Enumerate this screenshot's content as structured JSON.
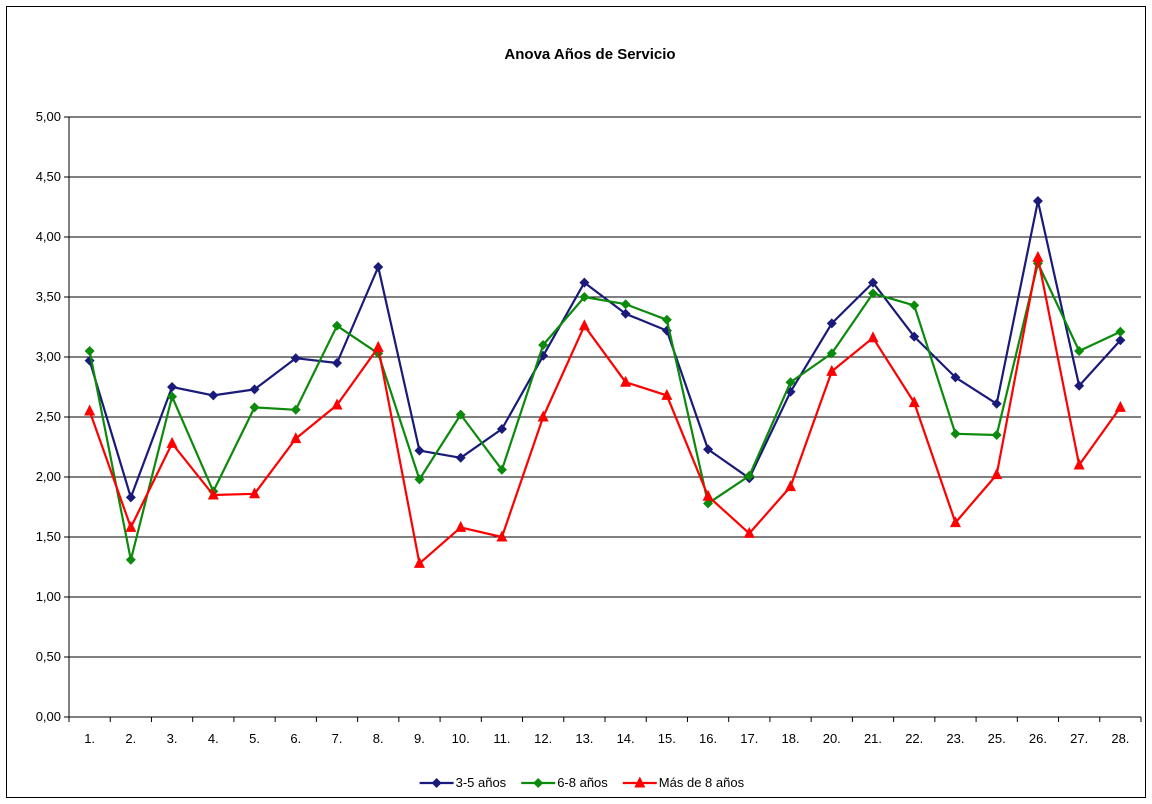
{
  "chart_data": {
    "type": "line",
    "title": "Anova Años de Servicio",
    "xlabel": "",
    "ylabel": "",
    "categories": [
      "1.",
      "2.",
      "3.",
      "4.",
      "5.",
      "6.",
      "7.",
      "8.",
      "9.",
      "10.",
      "11.",
      "12.",
      "13.",
      "14.",
      "15.",
      "16.",
      "17.",
      "18.",
      "20.",
      "21.",
      "22.",
      "23.",
      "25.",
      "26.",
      "27.",
      "28."
    ],
    "ylim": [
      0,
      5
    ],
    "yticks": [
      "0,00",
      "0,50",
      "1,00",
      "1,50",
      "2,00",
      "2,50",
      "3,00",
      "3,50",
      "4,00",
      "4,50",
      "5,00"
    ],
    "grid": true,
    "legend_position": "bottom",
    "series": [
      {
        "name": "3-5 años",
        "color": "#1a1a7a",
        "marker": "diamond",
        "values": [
          2.97,
          1.83,
          2.75,
          2.68,
          2.73,
          2.99,
          2.95,
          3.75,
          2.22,
          2.16,
          2.4,
          3.01,
          3.62,
          3.36,
          3.22,
          2.23,
          1.99,
          2.71,
          3.28,
          3.62,
          3.17,
          2.83,
          2.61,
          4.3,
          2.76,
          3.14
        ]
      },
      {
        "name": "6-8 años",
        "color": "#0b8a0b",
        "marker": "diamond",
        "values": [
          3.05,
          1.31,
          2.67,
          1.88,
          2.58,
          2.56,
          3.26,
          3.03,
          1.98,
          2.52,
          2.06,
          3.1,
          3.5,
          3.44,
          3.31,
          1.78,
          2.01,
          2.79,
          3.03,
          3.53,
          3.43,
          2.36,
          2.35,
          3.78,
          3.05,
          3.21
        ]
      },
      {
        "name": "Más de 8 años",
        "color": "#ff0000",
        "marker": "triangle",
        "values": [
          2.55,
          1.58,
          2.28,
          1.85,
          1.86,
          2.32,
          2.6,
          3.08,
          1.28,
          1.58,
          1.5,
          2.5,
          3.26,
          2.79,
          2.68,
          1.84,
          1.53,
          1.92,
          2.88,
          3.16,
          2.62,
          1.62,
          2.02,
          3.83,
          2.1,
          2.58
        ]
      }
    ]
  }
}
